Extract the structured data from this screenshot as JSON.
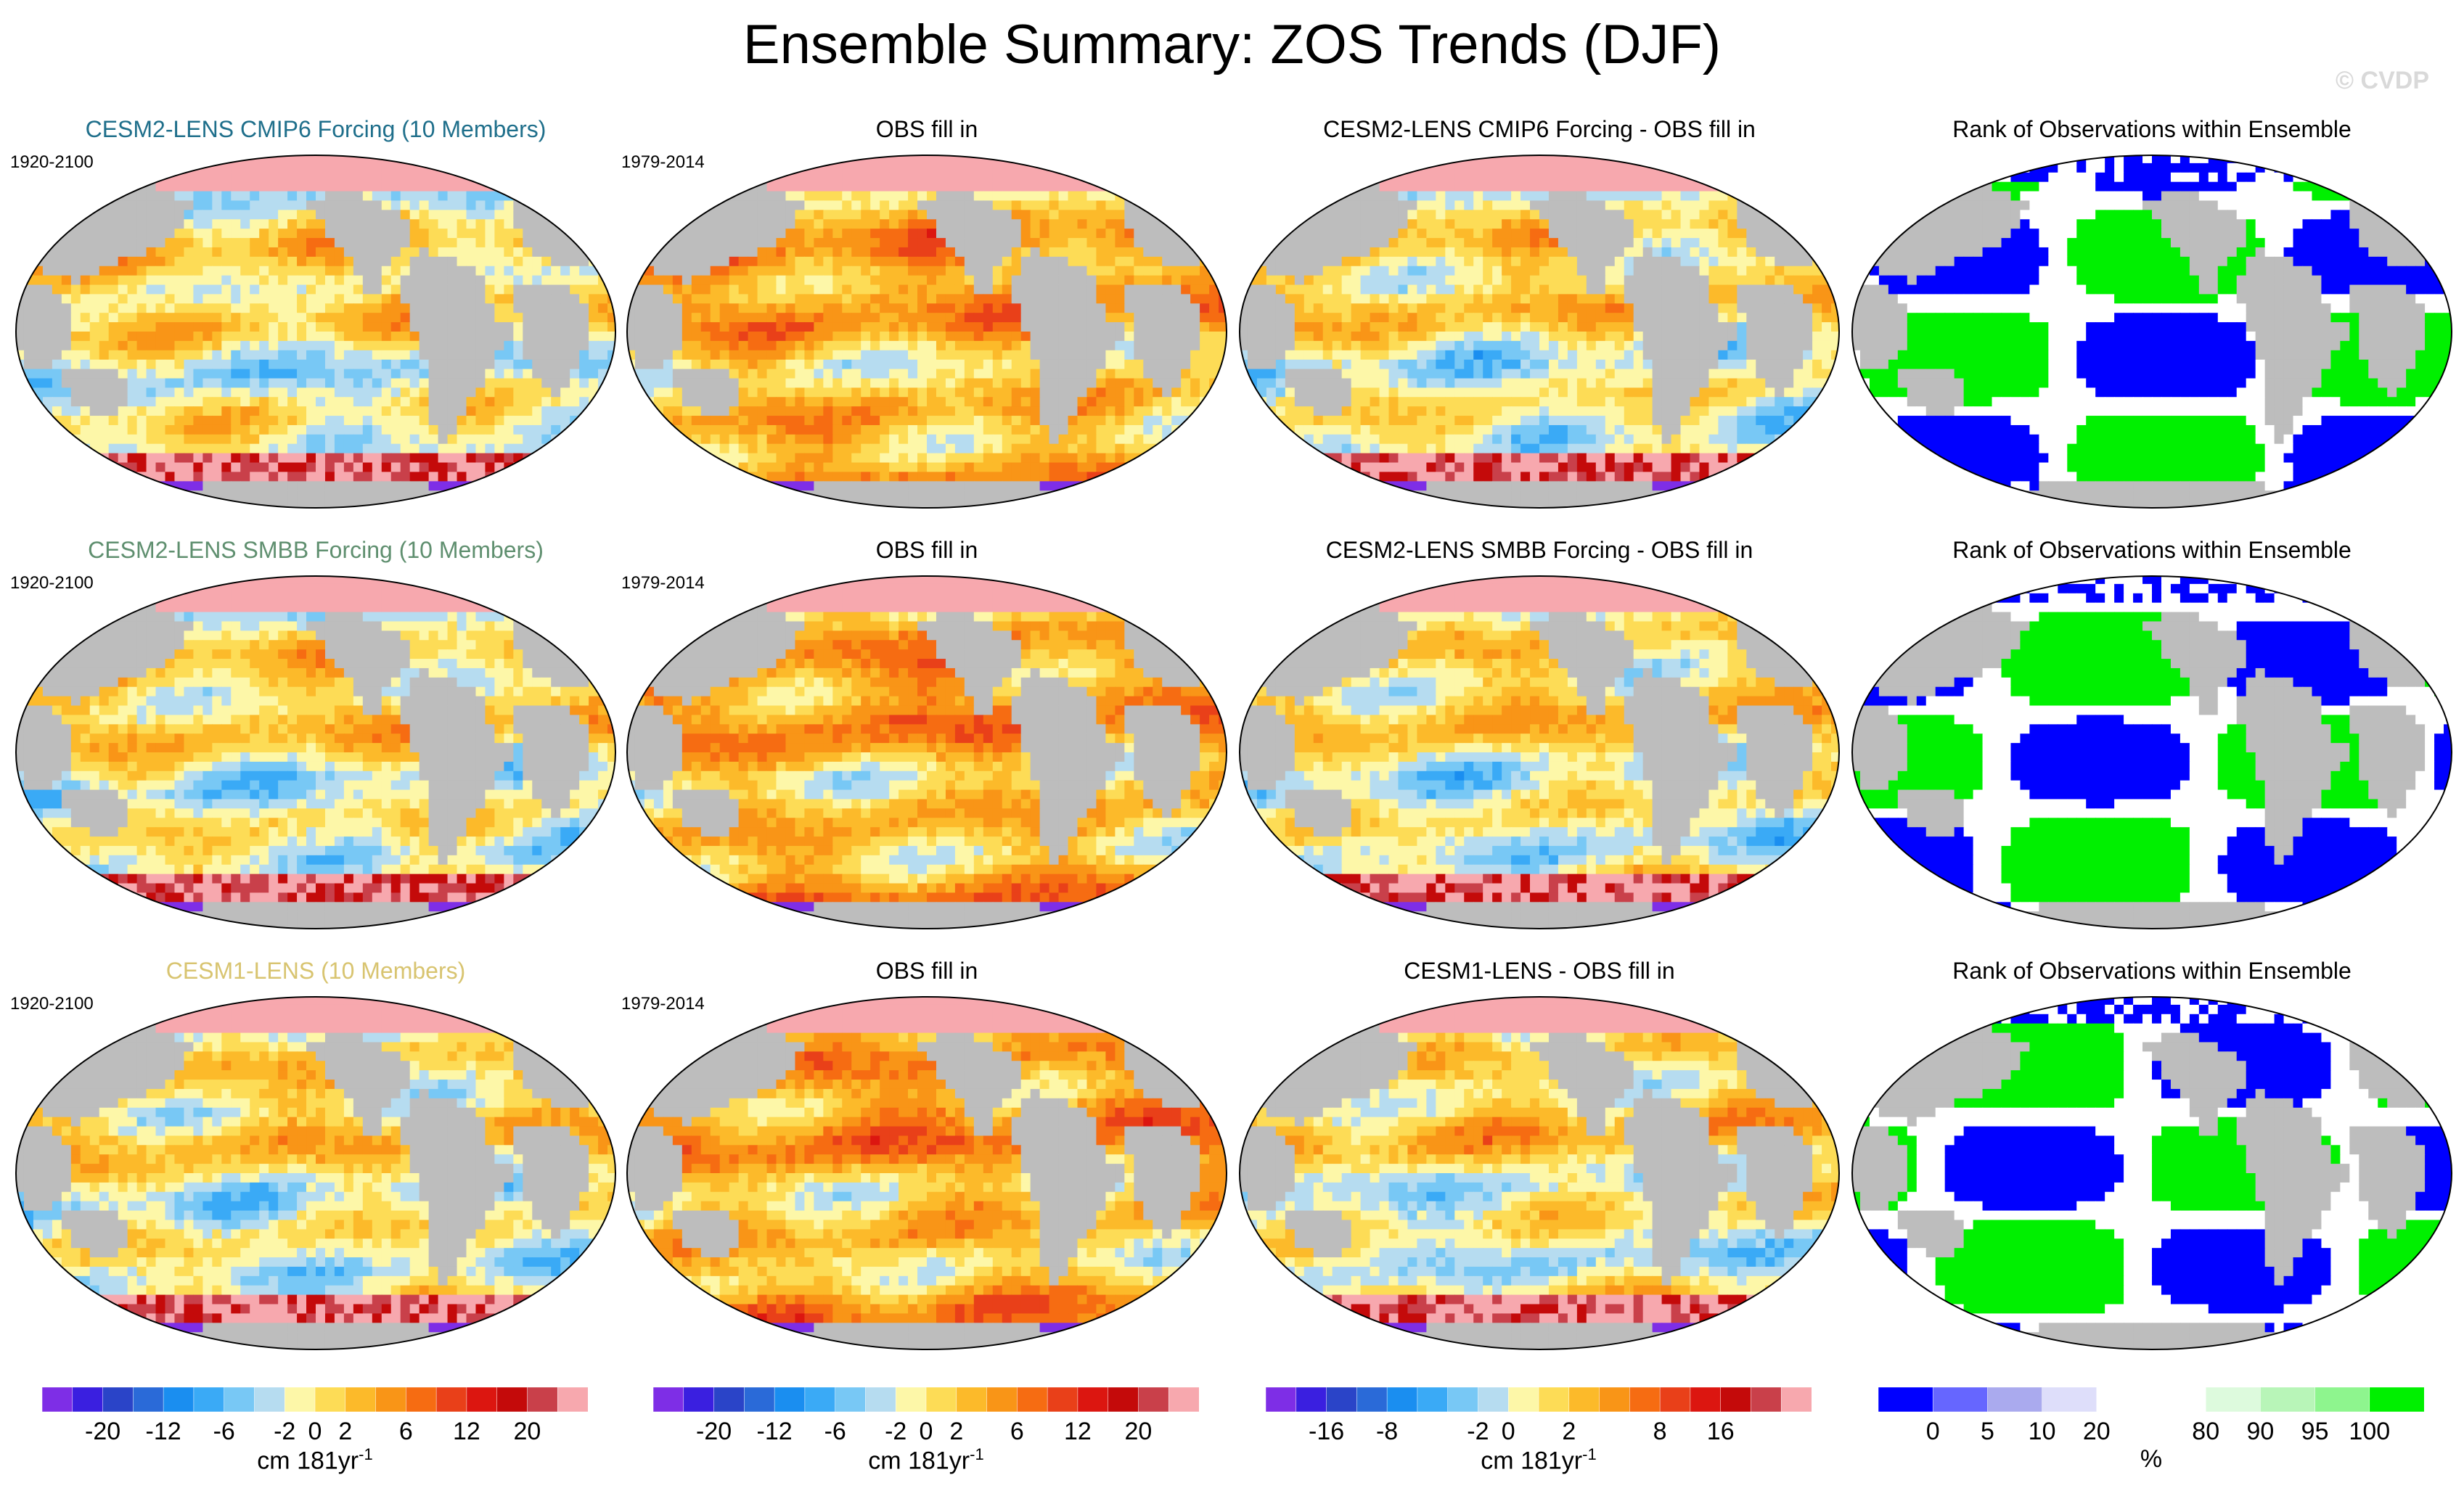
{
  "title": "Ensemble Summary: ZOS Trends (DJF)",
  "watermark": "© CVDP",
  "rows": [
    {
      "model_title": "CESM2-LENS CMIP6 Forcing (10 Members)",
      "model_title_color": "#1f6f8b",
      "model_period": "1920-2100",
      "obs_title": "OBS fill in",
      "obs_period": "1979-2014",
      "diff_title": "CESM2-LENS CMIP6 Forcing - OBS fill in",
      "rank_title": "Rank of Observations within Ensemble"
    },
    {
      "model_title": "CESM2-LENS SMBB Forcing (10 Members)",
      "model_title_color": "#5f8f6f",
      "model_period": "1920-2100",
      "obs_title": "OBS fill in",
      "obs_period": "1979-2014",
      "diff_title": "CESM2-LENS SMBB Forcing - OBS fill in",
      "rank_title": "Rank of Observations within Ensemble"
    },
    {
      "model_title": "CESM1-LENS (10 Members)",
      "model_title_color": "#d8c470",
      "model_period": "1920-2100",
      "obs_title": "OBS fill in",
      "obs_period": "1979-2014",
      "diff_title": "CESM1-LENS - OBS fill in",
      "rank_title": "Rank of Observations within Ensemble"
    }
  ],
  "colorbars": [
    {
      "colors": [
        "#7e2ee6",
        "#3a1fe0",
        "#2a44c8",
        "#2a6ad8",
        "#1a8ef0",
        "#3aaaf6",
        "#78c8f5",
        "#b6dcf0",
        "#fdf7a8",
        "#fddc56",
        "#fcba2a",
        "#f99517",
        "#f66c12",
        "#e94019",
        "#dc1610",
        "#c40a0a",
        "#c9404a",
        "#f7a8ae"
      ],
      "tick_labels": [
        "-20",
        "-12",
        "-6",
        "-2",
        "0",
        "2",
        "6",
        "12",
        "20"
      ],
      "tick_boundaries": [
        2,
        4,
        6,
        8,
        9,
        10,
        12,
        14,
        16
      ],
      "label": "cm 181yr",
      "label_sup": "-1"
    },
    {
      "colors": [
        "#7e2ee6",
        "#3a1fe0",
        "#2a44c8",
        "#2a6ad8",
        "#1a8ef0",
        "#3aaaf6",
        "#78c8f5",
        "#b6dcf0",
        "#fdf7a8",
        "#fddc56",
        "#fcba2a",
        "#f99517",
        "#f66c12",
        "#e94019",
        "#dc1610",
        "#c40a0a",
        "#c9404a",
        "#f7a8ae"
      ],
      "tick_labels": [
        "-20",
        "-12",
        "-6",
        "-2",
        "0",
        "2",
        "6",
        "12",
        "20"
      ],
      "tick_boundaries": [
        2,
        4,
        6,
        8,
        9,
        10,
        12,
        14,
        16
      ],
      "label": "cm 181yr",
      "label_sup": "-1"
    },
    {
      "colors": [
        "#7e2ee6",
        "#3a1fe0",
        "#2a44c8",
        "#2a6ad8",
        "#1a8ef0",
        "#3aaaf6",
        "#78c8f5",
        "#b6dcf0",
        "#fdf7a8",
        "#fddc56",
        "#fcba2a",
        "#f99517",
        "#f66c12",
        "#e94019",
        "#dc1610",
        "#c40a0a",
        "#c9404a",
        "#f7a8ae"
      ],
      "tick_labels": [
        "-16",
        "-8",
        "-2",
        "0",
        "2",
        "8",
        "16"
      ],
      "tick_boundaries": [
        2,
        4,
        7,
        8,
        10,
        13,
        15
      ],
      "label": "cm 181yr",
      "label_sup": "-1"
    },
    {
      "colors": [
        "#0000ff",
        "#6666ff",
        "#aaaaee",
        "#dedefa",
        "#ffffff",
        "#ffffff",
        "#ddfadd",
        "#b8f5b8",
        "#8ef58e",
        "#00f000"
      ],
      "tick_labels": [
        "0",
        "5",
        "10",
        "20",
        "80",
        "90",
        "95",
        "100"
      ],
      "tick_boundaries": [
        1,
        2,
        3,
        4,
        6,
        7,
        8,
        9
      ],
      "label": "%",
      "label_sup": ""
    }
  ],
  "chart_data": {
    "type": "heatmap",
    "description_fields": "global map panels",
    "variable": "ZOS trends (DJF)",
    "panels": [
      {
        "row": 1,
        "col": 1,
        "title": "CESM2-LENS CMIP6 Forcing (10 Members)",
        "period": "1920-2100",
        "colorbar": 1
      },
      {
        "row": 1,
        "col": 2,
        "title": "OBS fill in",
        "period": "1979-2014",
        "colorbar": 2
      },
      {
        "row": 1,
        "col": 3,
        "title": "CESM2-LENS CMIP6 Forcing - OBS fill in",
        "colorbar": 3
      },
      {
        "row": 1,
        "col": 4,
        "title": "Rank of Observations within Ensemble",
        "colorbar": 4
      },
      {
        "row": 2,
        "col": 1,
        "title": "CESM2-LENS SMBB Forcing (10 Members)",
        "period": "1920-2100",
        "colorbar": 1
      },
      {
        "row": 2,
        "col": 2,
        "title": "OBS fill in",
        "period": "1979-2014",
        "colorbar": 2
      },
      {
        "row": 2,
        "col": 3,
        "title": "CESM2-LENS SMBB Forcing - OBS fill in",
        "colorbar": 3
      },
      {
        "row": 2,
        "col": 4,
        "title": "Rank of Observations within Ensemble",
        "colorbar": 4
      },
      {
        "row": 3,
        "col": 1,
        "title": "CESM1-LENS (10 Members)",
        "period": "1920-2100",
        "colorbar": 1
      },
      {
        "row": 3,
        "col": 2,
        "title": "OBS fill in",
        "period": "1979-2014",
        "colorbar": 2
      },
      {
        "row": 3,
        "col": 3,
        "title": "CESM1-LENS - OBS fill in",
        "colorbar": 3
      },
      {
        "row": 3,
        "col": 4,
        "title": "Rank of Observations within Ensemble",
        "colorbar": 4
      }
    ],
    "colorbars": [
      {
        "ticks": [
          -20,
          -12,
          -6,
          -2,
          0,
          2,
          6,
          12,
          20
        ],
        "units": "cm 181yr-1"
      },
      {
        "ticks": [
          -20,
          -12,
          -6,
          -2,
          0,
          2,
          6,
          12,
          20
        ],
        "units": "cm 181yr-1"
      },
      {
        "ticks": [
          -16,
          -8,
          -2,
          0,
          2,
          8,
          16
        ],
        "units": "cm 181yr-1"
      },
      {
        "ticks": [
          0,
          5,
          10,
          20,
          80,
          90,
          95,
          100
        ],
        "units": "%"
      }
    ]
  }
}
